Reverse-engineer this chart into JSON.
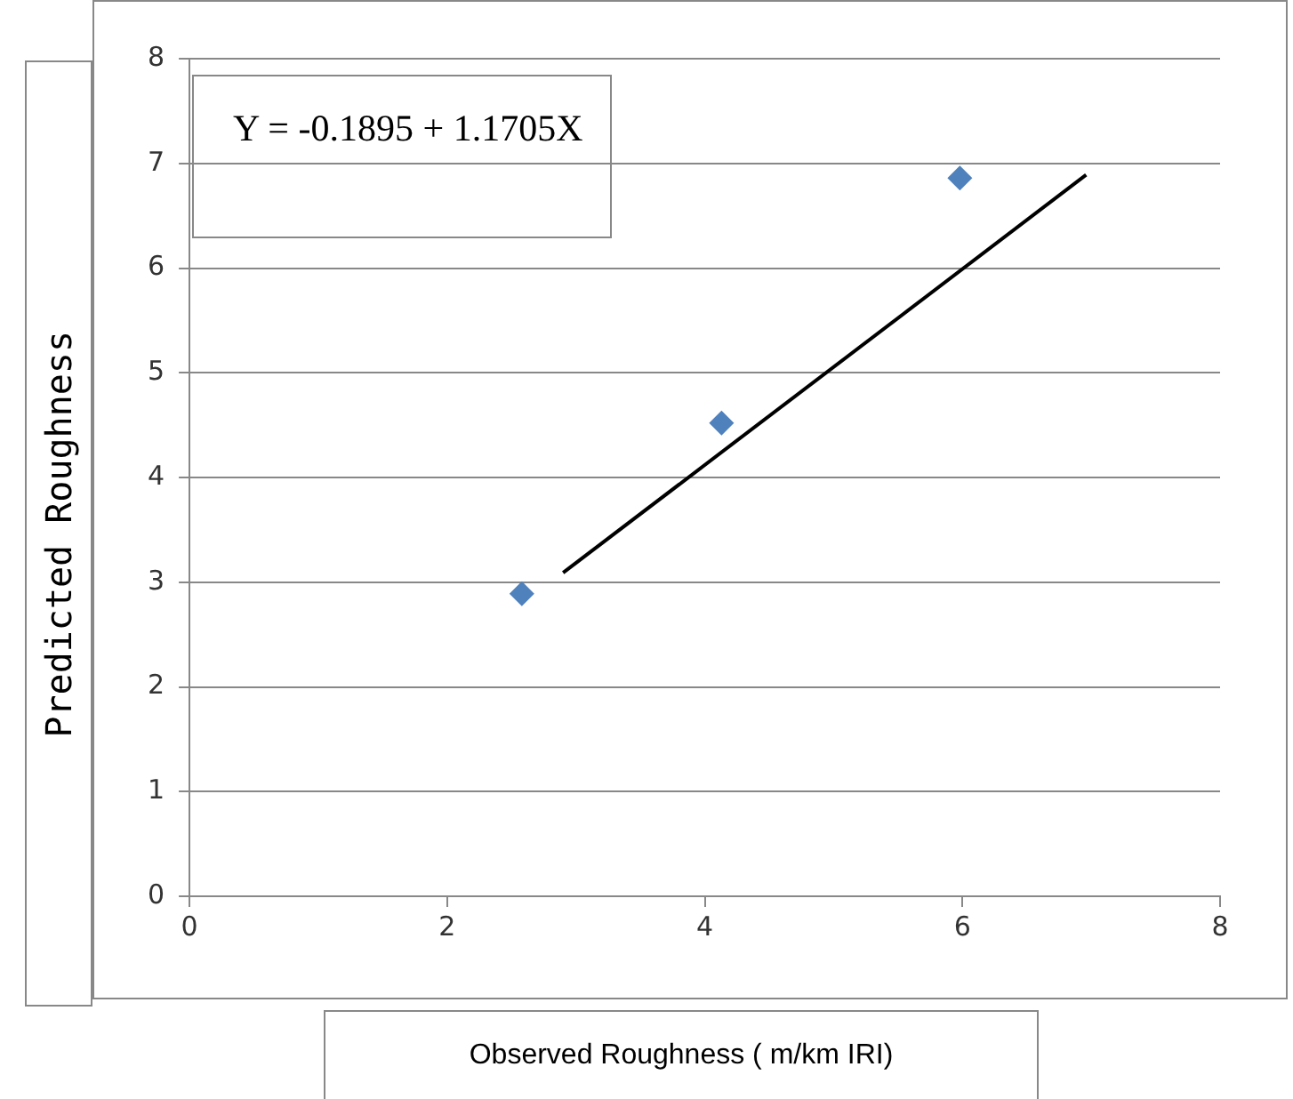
{
  "chart_data": {
    "type": "scatter",
    "xlabel": "Observed Roughness ( m/km IRI)",
    "ylabel": "Predicted Roughness",
    "annotations": [
      "Y =  -0.1895 + 1.1705X"
    ],
    "series": [
      {
        "type": "scatter",
        "x": [
          2.58,
          4.13,
          5.98
        ],
        "values": [
          2.89,
          4.52,
          6.86
        ],
        "color": "#4f81bd",
        "marker": "diamond"
      },
      {
        "type": "line",
        "x": [
          2.9,
          6.96
        ],
        "values": [
          3.09,
          6.89
        ],
        "color": "#000000",
        "marker": "none",
        "line_style": "solid"
      }
    ],
    "xlim": [
      0,
      8
    ],
    "xticks": [
      0,
      2,
      4,
      6,
      8
    ],
    "ylim": [
      0,
      8
    ],
    "yticks": [
      0,
      1,
      2,
      3,
      4,
      5,
      6,
      7,
      8
    ],
    "grid": "y"
  }
}
